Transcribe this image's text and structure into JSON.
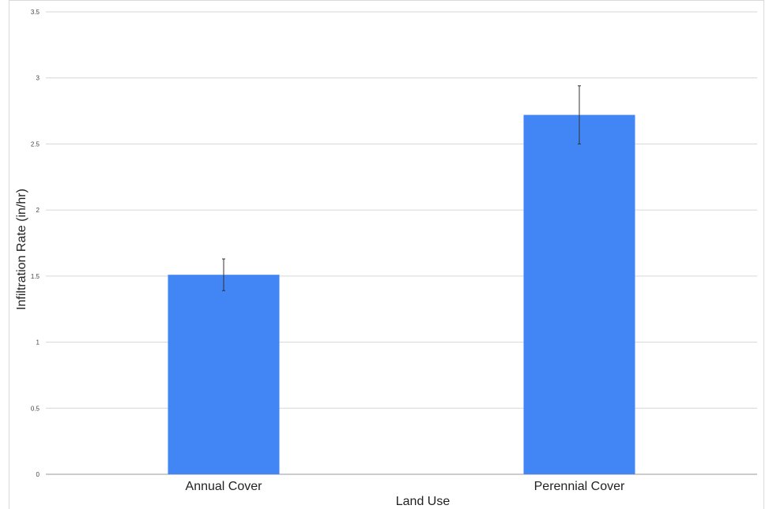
{
  "chart_data": {
    "type": "bar",
    "categories": [
      "Annual Cover",
      "Perennial Cover"
    ],
    "values": [
      1.51,
      2.72
    ],
    "error_low": [
      1.39,
      2.5
    ],
    "error_high": [
      1.63,
      2.94
    ],
    "xlabel": "Land Use",
    "ylabel": "Infiltration Rate (in/hr)",
    "ylim": [
      0,
      3.5
    ],
    "yticks": [
      "0",
      "0.5",
      "1",
      "1.5",
      "2",
      "2.5",
      "3",
      "3.5"
    ],
    "bar_color": "#4285f4",
    "grid": true
  }
}
